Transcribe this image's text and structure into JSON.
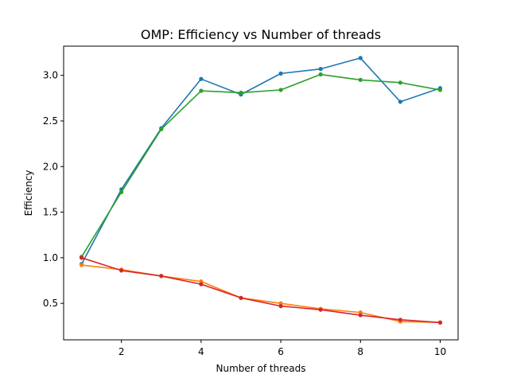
{
  "chart_data": {
    "type": "line",
    "title": "OMP: Efficiency vs Number of threads",
    "xlabel": "Number of threads",
    "ylabel": "Efficiency",
    "xlim": [
      0.55,
      10.45
    ],
    "ylim": [
      0.1,
      3.32
    ],
    "x_ticks": [
      2,
      4,
      6,
      8,
      10
    ],
    "x_tick_labels": [
      "2",
      "4",
      "6",
      "8",
      "10"
    ],
    "y_ticks": [
      0.5,
      1.0,
      1.5,
      2.0,
      2.5,
      3.0
    ],
    "y_tick_labels": [
      "0.5",
      "1.0",
      "1.5",
      "2.0",
      "2.5",
      "3.0"
    ],
    "grid": false,
    "legend": "none",
    "x": [
      1,
      2,
      3,
      4,
      5,
      6,
      7,
      8,
      9,
      10
    ],
    "series": [
      {
        "color": "#1f77b4",
        "values": [
          0.93,
          1.75,
          2.42,
          2.96,
          2.79,
          3.02,
          3.07,
          3.19,
          2.71,
          2.86
        ]
      },
      {
        "color": "#ff7f0e",
        "values": [
          0.92,
          0.87,
          0.8,
          0.74,
          0.56,
          0.5,
          0.44,
          0.4,
          0.3,
          0.29
        ]
      },
      {
        "color": "#2ca02c",
        "values": [
          1.01,
          1.72,
          2.41,
          2.83,
          2.81,
          2.84,
          3.01,
          2.95,
          2.92,
          2.84
        ]
      },
      {
        "color": "#d62728",
        "values": [
          1.0,
          0.86,
          0.8,
          0.71,
          0.56,
          0.47,
          0.43,
          0.37,
          0.32,
          0.29
        ]
      }
    ]
  }
}
